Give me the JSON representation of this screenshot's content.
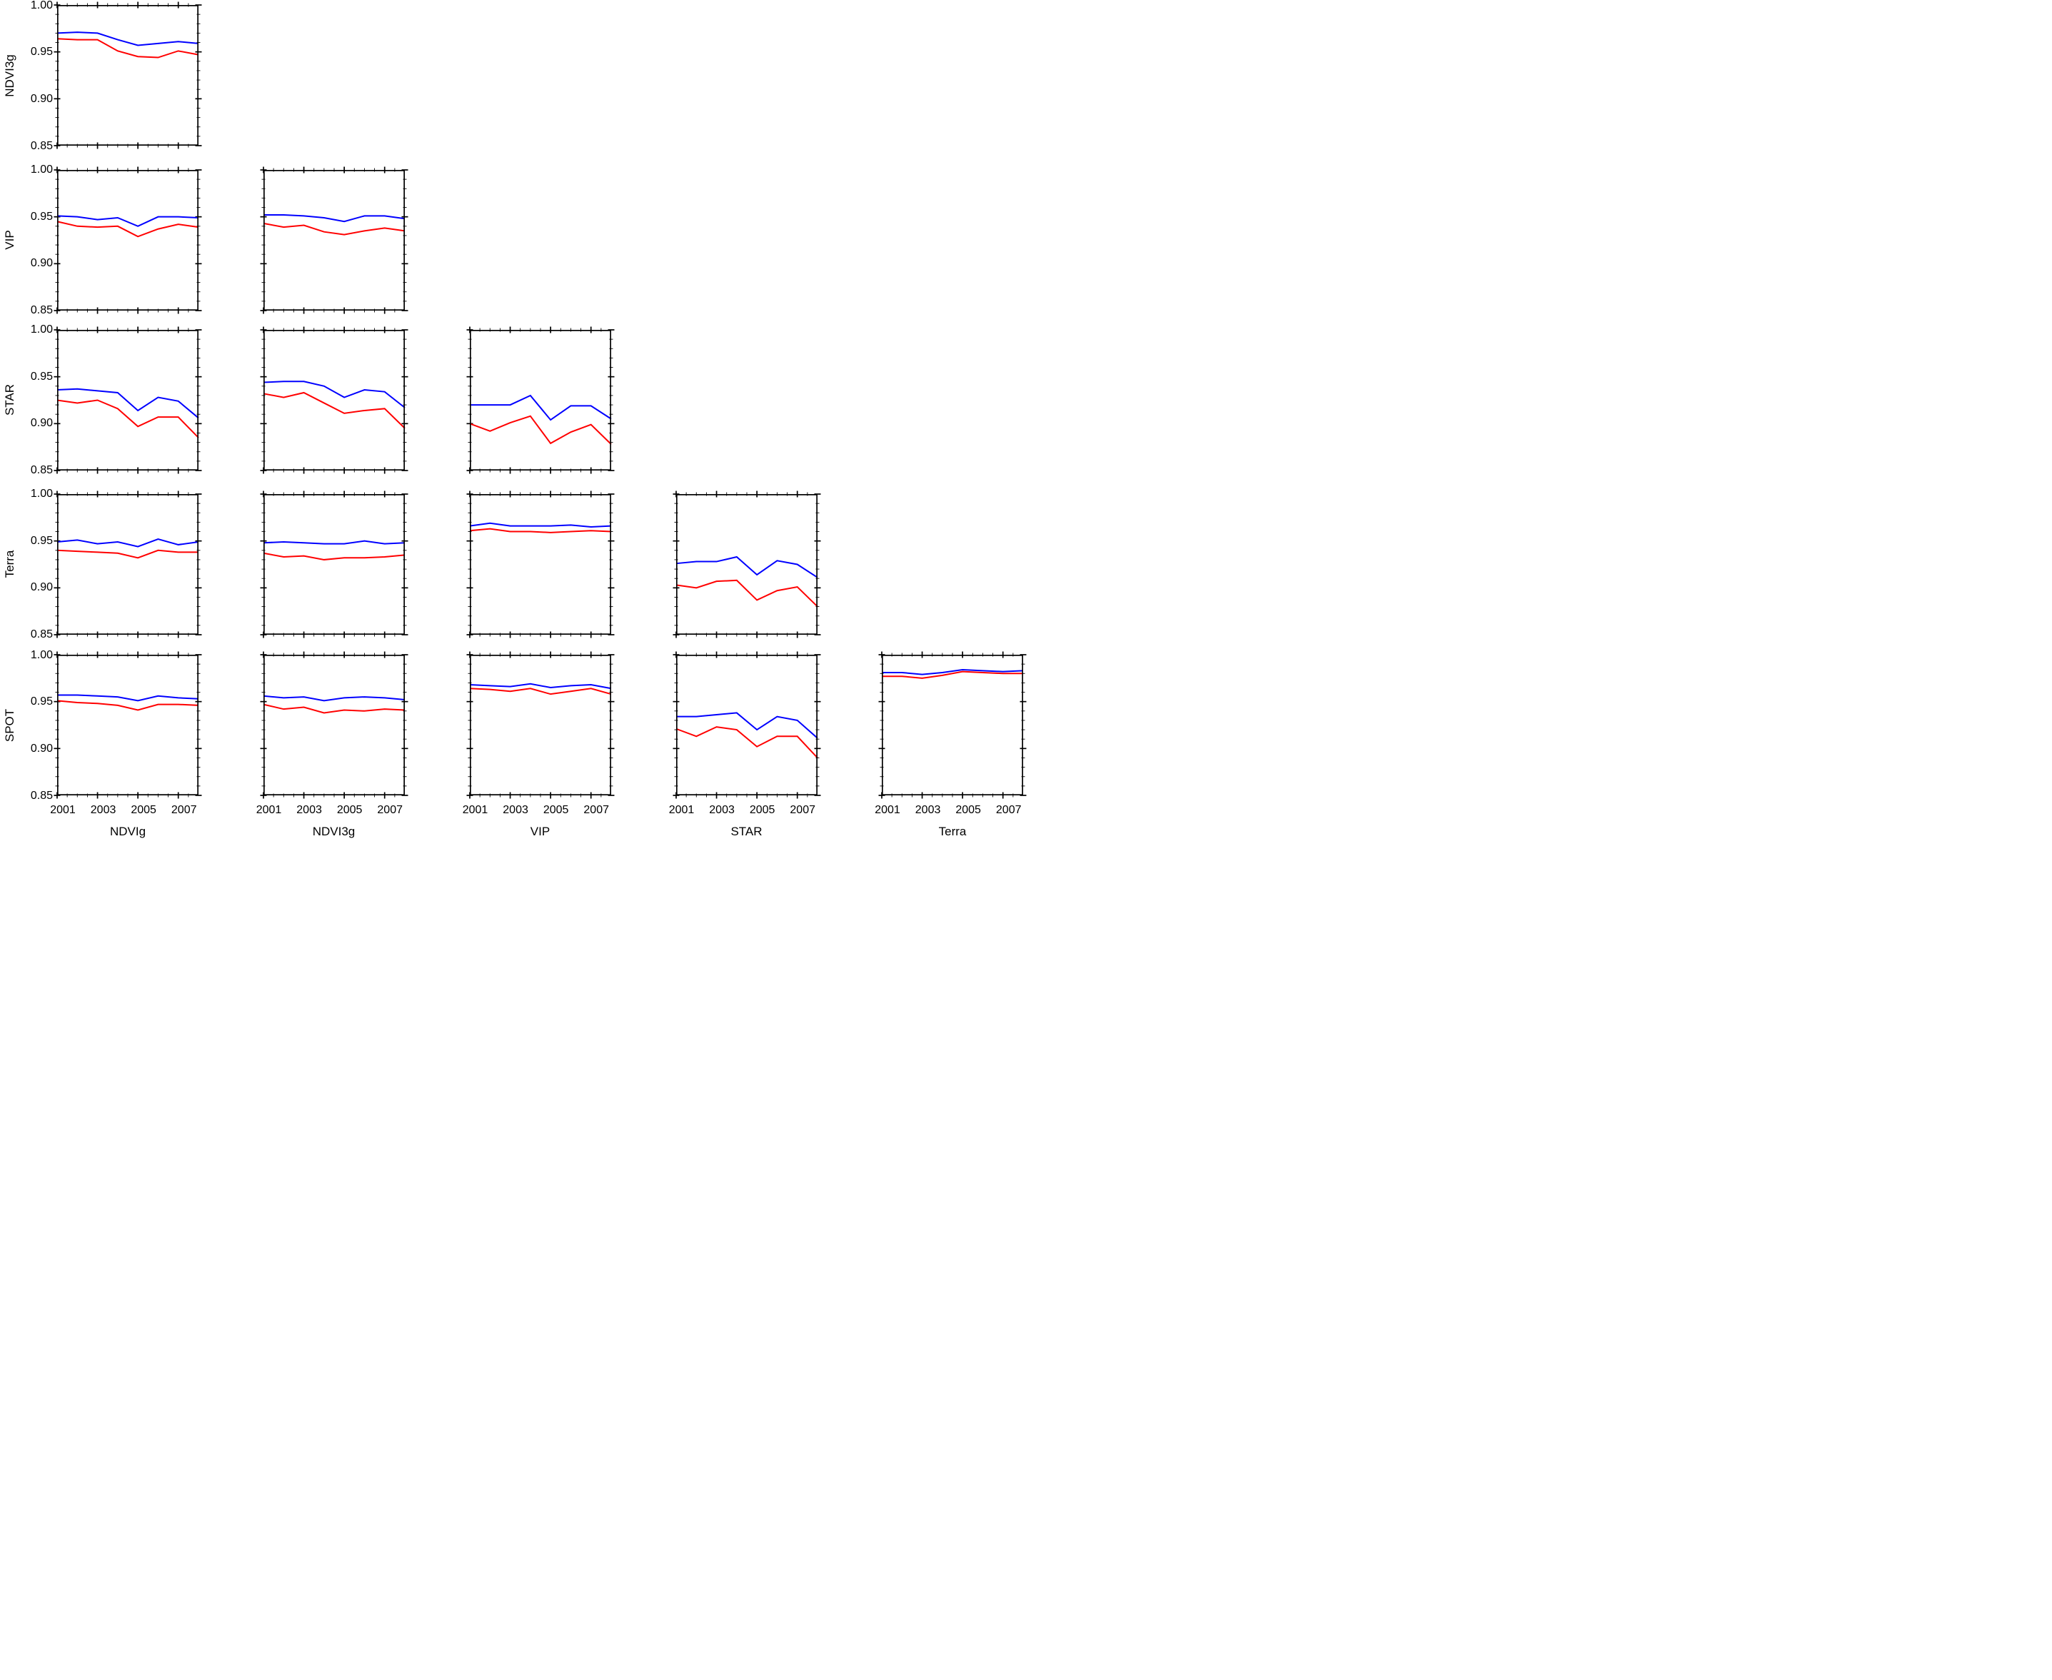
{
  "figure_title": "",
  "y_axis": {
    "tick_labels": [
      "1.00",
      "0.95",
      "0.90",
      "0.85"
    ],
    "tick_values": [
      1.0,
      0.95,
      0.9,
      0.85
    ],
    "minor_step": 0.01,
    "range": [
      0.85,
      1.0
    ]
  },
  "x_axis": {
    "tick_labels": [
      "2001",
      "2003",
      "2005",
      "2007"
    ],
    "tick_values": [
      2001,
      2003,
      2005,
      2007
    ],
    "minor_step": 0.5,
    "range": [
      2001,
      2008
    ]
  },
  "rows": [
    "NDVI3g",
    "VIP",
    "STAR",
    "Terra",
    "SPOT"
  ],
  "cols": [
    "NDVIg",
    "NDVI3g",
    "VIP",
    "STAR",
    "Terra"
  ],
  "colors": {
    "series_blue": "#0000FF",
    "series_red": "#FF0000",
    "axis": "#000000"
  },
  "chart_data": {
    "type": "line",
    "layout": "lower-triangular scatterplot matrix, 5 rows x 5 cols",
    "x": [
      2001,
      2002,
      2003,
      2004,
      2005,
      2006,
      2007,
      2008
    ],
    "xlim": [
      2001,
      2008
    ],
    "ylim": [
      0.85,
      1.0
    ],
    "x_tick_labels": [
      "2001",
      "2003",
      "2005",
      "2007"
    ],
    "y_tick_labels": [
      "1.00",
      "0.95",
      "0.90",
      "0.85"
    ],
    "row_labels": [
      "NDVI3g",
      "VIP",
      "STAR",
      "Terra",
      "SPOT"
    ],
    "col_labels": [
      "NDVIg",
      "NDVI3g",
      "VIP",
      "STAR",
      "Terra"
    ],
    "series_colors": {
      "blue": "#0000FF",
      "red": "#FF0000"
    },
    "panels": [
      {
        "row": "NDVI3g",
        "col": "NDVIg",
        "blue": [
          0.97,
          0.971,
          0.97,
          0.963,
          0.957,
          0.959,
          0.961,
          0.959
        ],
        "red": [
          0.964,
          0.963,
          0.963,
          0.951,
          0.945,
          0.944,
          0.951,
          0.947
        ]
      },
      {
        "row": "VIP",
        "col": "NDVIg",
        "blue": [
          0.951,
          0.95,
          0.947,
          0.949,
          0.94,
          0.95,
          0.95,
          0.949
        ],
        "red": [
          0.945,
          0.94,
          0.939,
          0.94,
          0.929,
          0.937,
          0.942,
          0.939
        ]
      },
      {
        "row": "VIP",
        "col": "NDVI3g",
        "blue": [
          0.952,
          0.952,
          0.951,
          0.949,
          0.945,
          0.951,
          0.951,
          0.948
        ],
        "red": [
          0.943,
          0.939,
          0.941,
          0.934,
          0.931,
          0.935,
          0.938,
          0.935
        ]
      },
      {
        "row": "STAR",
        "col": "NDVIg",
        "blue": [
          0.936,
          0.937,
          0.935,
          0.933,
          0.914,
          0.928,
          0.924,
          0.906
        ],
        "red": [
          0.925,
          0.922,
          0.925,
          0.916,
          0.897,
          0.907,
          0.907,
          0.885
        ]
      },
      {
        "row": "STAR",
        "col": "NDVI3g",
        "blue": [
          0.944,
          0.945,
          0.945,
          0.94,
          0.928,
          0.936,
          0.934,
          0.917
        ],
        "red": [
          0.932,
          0.928,
          0.933,
          0.922,
          0.911,
          0.914,
          0.916,
          0.895
        ]
      },
      {
        "row": "STAR",
        "col": "VIP",
        "blue": [
          0.92,
          0.92,
          0.92,
          0.93,
          0.904,
          0.919,
          0.919,
          0.905
        ],
        "red": [
          0.9,
          0.892,
          0.901,
          0.908,
          0.879,
          0.891,
          0.899,
          0.878
        ]
      },
      {
        "row": "Terra",
        "col": "NDVIg",
        "blue": [
          0.949,
          0.951,
          0.947,
          0.949,
          0.944,
          0.952,
          0.946,
          0.949
        ],
        "red": [
          0.94,
          0.939,
          0.938,
          0.937,
          0.932,
          0.94,
          0.938,
          0.938
        ]
      },
      {
        "row": "Terra",
        "col": "NDVI3g",
        "blue": [
          0.948,
          0.949,
          0.948,
          0.947,
          0.947,
          0.95,
          0.947,
          0.948
        ],
        "red": [
          0.937,
          0.933,
          0.934,
          0.93,
          0.932,
          0.932,
          0.933,
          0.935
        ]
      },
      {
        "row": "Terra",
        "col": "VIP",
        "blue": [
          0.966,
          0.969,
          0.966,
          0.966,
          0.966,
          0.967,
          0.965,
          0.966
        ],
        "red": [
          0.961,
          0.963,
          0.96,
          0.96,
          0.959,
          0.96,
          0.961,
          0.96
        ]
      },
      {
        "row": "Terra",
        "col": "STAR",
        "blue": [
          0.926,
          0.928,
          0.928,
          0.933,
          0.914,
          0.929,
          0.925,
          0.911
        ],
        "red": [
          0.903,
          0.9,
          0.907,
          0.908,
          0.887,
          0.897,
          0.901,
          0.88
        ]
      },
      {
        "row": "SPOT",
        "col": "NDVIg",
        "blue": [
          0.957,
          0.957,
          0.956,
          0.955,
          0.951,
          0.956,
          0.954,
          0.953
        ],
        "red": [
          0.951,
          0.949,
          0.948,
          0.946,
          0.941,
          0.947,
          0.947,
          0.946
        ]
      },
      {
        "row": "SPOT",
        "col": "NDVI3g",
        "blue": [
          0.956,
          0.954,
          0.955,
          0.951,
          0.954,
          0.955,
          0.954,
          0.952
        ],
        "red": [
          0.947,
          0.942,
          0.944,
          0.938,
          0.941,
          0.94,
          0.942,
          0.941
        ]
      },
      {
        "row": "SPOT",
        "col": "VIP",
        "blue": [
          0.968,
          0.967,
          0.966,
          0.969,
          0.965,
          0.967,
          0.968,
          0.964
        ],
        "red": [
          0.964,
          0.963,
          0.961,
          0.964,
          0.958,
          0.961,
          0.964,
          0.958
        ]
      },
      {
        "row": "SPOT",
        "col": "STAR",
        "blue": [
          0.934,
          0.934,
          0.936,
          0.938,
          0.92,
          0.934,
          0.93,
          0.911
        ],
        "red": [
          0.921,
          0.913,
          0.923,
          0.92,
          0.902,
          0.913,
          0.913,
          0.89
        ]
      },
      {
        "row": "SPOT",
        "col": "Terra",
        "blue": [
          0.981,
          0.981,
          0.979,
          0.981,
          0.984,
          0.983,
          0.982,
          0.983
        ],
        "red": [
          0.977,
          0.977,
          0.975,
          0.978,
          0.982,
          0.981,
          0.98,
          0.98
        ]
      }
    ]
  }
}
